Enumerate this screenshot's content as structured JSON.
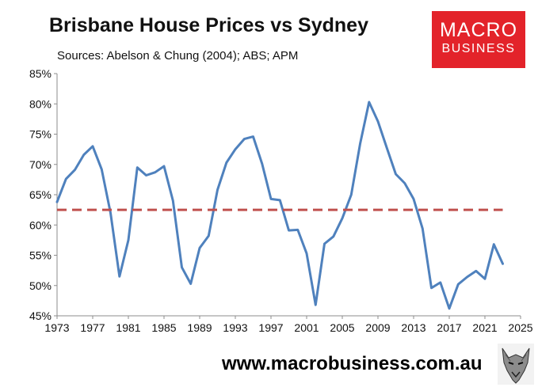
{
  "header": {
    "title": "Brisbane House Prices vs Sydney",
    "subtitle": "Sources: Abelson & Chung (2004); ABS; APM"
  },
  "logo": {
    "line1": "MACRO",
    "line2": "BUSINESS",
    "color": "#e3232a"
  },
  "footer": {
    "url": "www.macrobusiness.com.au",
    "icon": "wolf-icon"
  },
  "chart_data": {
    "type": "line",
    "title": "Brisbane House Prices vs Sydney",
    "xlabel": "",
    "ylabel": "",
    "xlim": [
      1973,
      2025
    ],
    "ylim": [
      0.45,
      0.85
    ],
    "x_ticks": [
      1973,
      1977,
      1981,
      1985,
      1989,
      1993,
      1997,
      2001,
      2005,
      2009,
      2013,
      2017,
      2021,
      2025
    ],
    "y_ticks": [
      {
        "value": 0.45,
        "label": "45%"
      },
      {
        "value": 0.5,
        "label": "50%"
      },
      {
        "value": 0.55,
        "label": "55%"
      },
      {
        "value": 0.6,
        "label": "60%"
      },
      {
        "value": 0.65,
        "label": "65%"
      },
      {
        "value": 0.7,
        "label": "70%"
      },
      {
        "value": 0.75,
        "label": "75%"
      },
      {
        "value": 0.8,
        "label": "80%"
      },
      {
        "value": 0.85,
        "label": "85%"
      }
    ],
    "grid": false,
    "legend": "none",
    "series": [
      {
        "color": "#4f81bd",
        "x": [
          1973,
          1974,
          1975,
          1976,
          1977,
          1978,
          1979,
          1980,
          1981,
          1982,
          1983,
          1984,
          1985,
          1986,
          1987,
          1988,
          1989,
          1990,
          1991,
          1992,
          1993,
          1994,
          1995,
          1996,
          1997,
          1998,
          1999,
          2000,
          2001,
          2002,
          2003,
          2004,
          2005,
          2006,
          2007,
          2008,
          2009,
          2010,
          2011,
          2012,
          2013,
          2014,
          2015,
          2016,
          2017,
          2018,
          2019,
          2020,
          2021,
          2022,
          2023
        ],
        "y": [
          0.638,
          0.676,
          0.691,
          0.716,
          0.73,
          0.692,
          0.62,
          0.515,
          0.575,
          0.695,
          0.682,
          0.687,
          0.697,
          0.64,
          0.53,
          0.503,
          0.562,
          0.582,
          0.658,
          0.703,
          0.725,
          0.742,
          0.746,
          0.701,
          0.643,
          0.641,
          0.591,
          0.592,
          0.553,
          0.468,
          0.569,
          0.581,
          0.611,
          0.65,
          0.734,
          0.803,
          0.771,
          0.727,
          0.684,
          0.669,
          0.643,
          0.594,
          0.496,
          0.505,
          0.462,
          0.502,
          0.514,
          0.524,
          0.511,
          0.568,
          0.536
        ]
      },
      {
        "color": "#c0504d",
        "dashed": true,
        "x": [
          1973,
          2023
        ],
        "y": [
          0.625,
          0.625
        ]
      }
    ]
  }
}
